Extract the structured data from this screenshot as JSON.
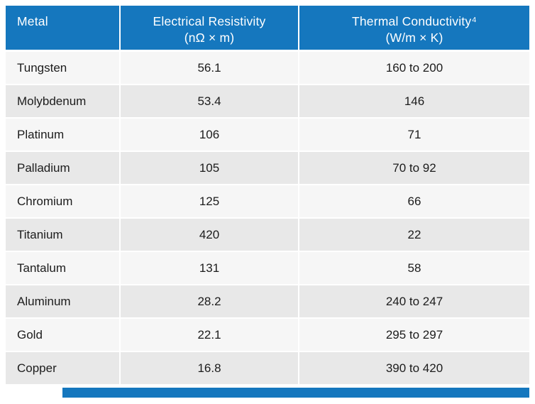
{
  "colors": {
    "header_bg": "#1577BE",
    "header_text": "#FFFFFF",
    "row_odd_bg": "#F6F6F6",
    "row_even_bg": "#E8E8E8",
    "body_text": "#1C1C1C"
  },
  "table": {
    "header": {
      "metal": "Metal",
      "col2_title": "Electrical Resistivity",
      "col2_unit": "(nΩ × m)",
      "col3_title": "Thermal Conductivity⁴",
      "col3_unit": "(W/m × K)"
    },
    "rows": [
      {
        "metal": "Tungsten",
        "resistivity": "56.1",
        "conductivity": "160 to 200"
      },
      {
        "metal": "Molybdenum",
        "resistivity": "53.4",
        "conductivity": "146"
      },
      {
        "metal": "Platinum",
        "resistivity": "106",
        "conductivity": "71"
      },
      {
        "metal": "Palladium",
        "resistivity": "105",
        "conductivity": "70 to 92"
      },
      {
        "metal": "Chromium",
        "resistivity": "125",
        "conductivity": "66"
      },
      {
        "metal": "Titanium",
        "resistivity": "420",
        "conductivity": "22"
      },
      {
        "metal": "Tantalum",
        "resistivity": "131",
        "conductivity": "58"
      },
      {
        "metal": "Aluminum",
        "resistivity": "28.2",
        "conductivity": "240 to 247"
      },
      {
        "metal": "Gold",
        "resistivity": "22.1",
        "conductivity": "295 to 297"
      },
      {
        "metal": "Copper",
        "resistivity": "16.8",
        "conductivity": "390 to 420"
      }
    ]
  },
  "chart_data": {
    "type": "table",
    "title": "",
    "columns": [
      "Metal",
      "Electrical Resistivity (nΩ × m)",
      "Thermal Conductivity⁴ (W/m × K)"
    ],
    "rows": [
      [
        "Tungsten",
        "56.1",
        "160 to 200"
      ],
      [
        "Molybdenum",
        "53.4",
        "146"
      ],
      [
        "Platinum",
        "106",
        "71"
      ],
      [
        "Palladium",
        "105",
        "70 to 92"
      ],
      [
        "Chromium",
        "125",
        "66"
      ],
      [
        "Titanium",
        "420",
        "22"
      ],
      [
        "Tantalum",
        "131",
        "58"
      ],
      [
        "Aluminum",
        "28.2",
        "240 to 247"
      ],
      [
        "Gold",
        "22.1",
        "295 to 297"
      ],
      [
        "Copper",
        "16.8",
        "390 to 420"
      ]
    ]
  }
}
